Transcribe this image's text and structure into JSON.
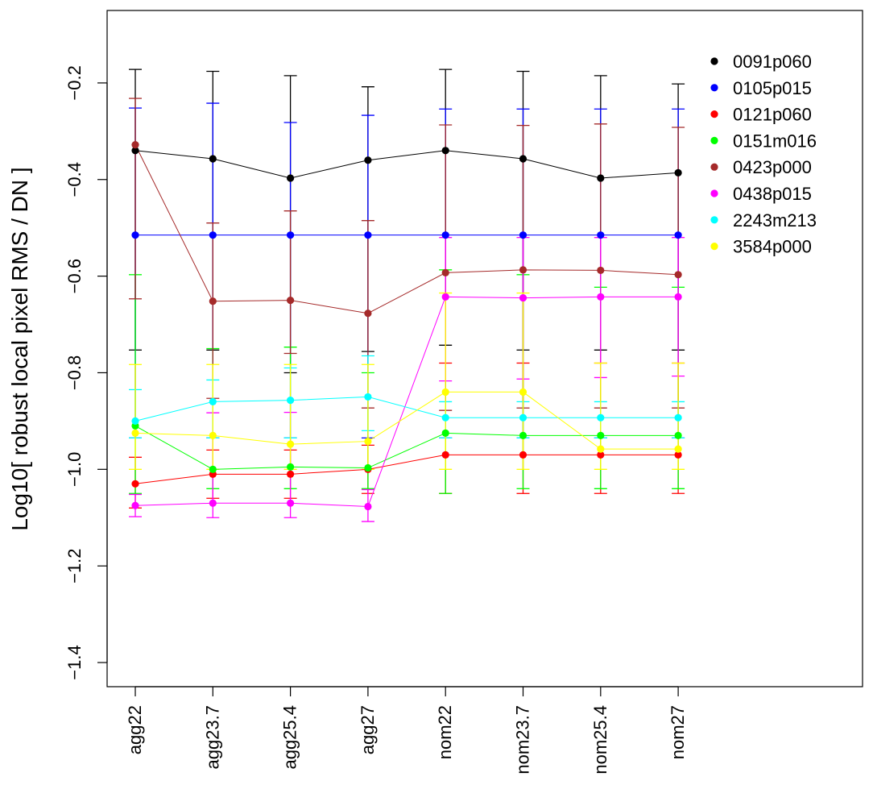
{
  "chart_data": {
    "type": "line",
    "ylabel": "Log10[ robust local pixel RMS / DN ]",
    "categories": [
      "agg22",
      "agg23.7",
      "agg25.4",
      "agg27",
      "nom22",
      "nom23.7",
      "nom25.4",
      "nom27"
    ],
    "ylim": [
      -1.45,
      -0.05
    ],
    "yticks": [
      -1.4,
      -1.2,
      -1.0,
      -0.8,
      -0.6,
      -0.4,
      -0.2
    ],
    "ytick_labels": [
      "-1.4",
      "-1.2",
      "-1.0",
      "-0.8",
      "-0.6",
      "-0.4",
      "-0.2"
    ],
    "grid": false,
    "legend_position": "top-right",
    "series": [
      {
        "name": "0091p060",
        "color": "#000000",
        "values": [
          -0.34,
          -0.357,
          -0.397,
          -0.36,
          -0.34,
          -0.357,
          -0.397,
          -0.386
        ],
        "err_high": [
          -0.172,
          -0.176,
          -0.185,
          -0.208,
          -0.172,
          -0.176,
          -0.185,
          -0.202
        ],
        "err_low": [
          -0.753,
          -0.753,
          -0.8,
          -0.756,
          -0.743,
          -0.753,
          -0.753,
          -0.753
        ]
      },
      {
        "name": "0105p015",
        "color": "#0000ff",
        "values": [
          -0.515,
          -0.515,
          -0.515,
          -0.515,
          -0.515,
          -0.515,
          -0.515,
          -0.515
        ],
        "err_high": [
          -0.252,
          -0.242,
          -0.282,
          -0.267,
          -0.254,
          -0.254,
          -0.254,
          -0.254
        ],
        "err_low": [
          -0.935,
          -0.935,
          -0.935,
          -0.935,
          -0.935,
          -0.935,
          -0.935,
          -0.935
        ]
      },
      {
        "name": "0121p060",
        "color": "#ff0000",
        "values": [
          -1.03,
          -1.01,
          -1.01,
          -1.0,
          -0.97,
          -0.97,
          -0.97,
          -0.97
        ],
        "err_high": [
          -0.975,
          -0.96,
          -0.96,
          -0.95,
          -0.78,
          -0.78,
          -0.78,
          -0.78
        ],
        "err_low": [
          -1.08,
          -1.06,
          -1.06,
          -1.05,
          -1.05,
          -1.05,
          -1.05,
          -1.05
        ]
      },
      {
        "name": "0151m016",
        "color": "#00ff00",
        "values": [
          -0.91,
          -1.0,
          -0.995,
          -0.997,
          -0.925,
          -0.93,
          -0.93,
          -0.93
        ],
        "err_high": [
          -0.597,
          -0.75,
          -0.747,
          -0.8,
          -0.587,
          -0.597,
          -0.623,
          -0.623
        ],
        "err_low": [
          -1.05,
          -1.04,
          -1.04,
          -1.04,
          -1.05,
          -1.04,
          -1.04,
          -1.04
        ]
      },
      {
        "name": "0423p000",
        "color": "#a52a2a",
        "values": [
          -0.328,
          -0.652,
          -0.65,
          -0.677,
          -0.593,
          -0.587,
          -0.588,
          -0.597
        ],
        "err_high": [
          -0.232,
          -0.49,
          -0.465,
          -0.485,
          -0.287,
          -0.288,
          -0.285,
          -0.292
        ],
        "err_low": [
          -0.647,
          -0.853,
          -0.76,
          -0.873,
          -0.878,
          -0.873,
          -0.873,
          -0.873
        ]
      },
      {
        "name": "0438p015",
        "color": "#ff00ff",
        "values": [
          -1.075,
          -1.07,
          -1.07,
          -1.077,
          -0.643,
          -0.645,
          -0.643,
          -0.643
        ],
        "err_high": [
          -1.052,
          -0.883,
          -0.882,
          -1.042,
          -0.52,
          -0.52,
          -0.52,
          -0.52
        ],
        "err_low": [
          -1.098,
          -1.1,
          -1.1,
          -1.108,
          -0.817,
          -0.813,
          -0.81,
          -0.807
        ]
      },
      {
        "name": "2243m213",
        "color": "#00ffff",
        "values": [
          -0.9,
          -0.86,
          -0.857,
          -0.85,
          -0.893,
          -0.893,
          -0.893,
          -0.893
        ],
        "err_high": [
          -0.835,
          -0.815,
          -0.79,
          -0.765,
          -0.86,
          -0.86,
          -0.86,
          -0.86
        ],
        "err_low": [
          -0.935,
          -0.935,
          -0.935,
          -0.92,
          -0.935,
          -0.935,
          -0.935,
          -0.935
        ]
      },
      {
        "name": "3584p000",
        "color": "#ffff00",
        "values": [
          -0.925,
          -0.93,
          -0.948,
          -0.942,
          -0.84,
          -0.84,
          -0.958,
          -0.958
        ],
        "err_high": [
          -0.783,
          -0.783,
          -0.783,
          -0.783,
          -0.635,
          -0.635,
          -0.78,
          -0.78
        ],
        "err_low": [
          -1.0,
          -1.0,
          -1.0,
          -1.0,
          -1.0,
          -1.0,
          -1.0,
          -1.0
        ]
      }
    ]
  }
}
